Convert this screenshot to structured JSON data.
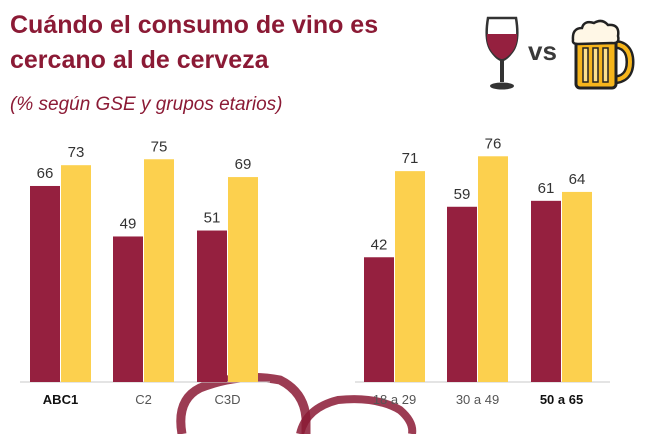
{
  "title": "Cuándo el consumo de vino es cercano al de cerveza",
  "subtitle": "(% según GSE y grupos etarios)",
  "vs_label": "vs",
  "icons": {
    "left": "wine-glass-icon",
    "right": "beer-mug-icon"
  },
  "colors": {
    "wine": "#95203f",
    "beer": "#fcd04e",
    "title": "#8b1a35"
  },
  "chart_data": {
    "type": "bar",
    "title": "Cuándo el consumo de vino es cercano al de cerveza",
    "subtitle": "(% según GSE y grupos etarios)",
    "categories": [
      "ABC1",
      "C2",
      "C3D",
      "18 a 29",
      "30 a 49",
      "50 a 65"
    ],
    "bold_categories": [
      "ABC1",
      "50 a 65"
    ],
    "series": [
      {
        "values": [
          66,
          49,
          51,
          42,
          59,
          61
        ],
        "color": "#95203f"
      },
      {
        "values": [
          73,
          75,
          69,
          71,
          76,
          64
        ],
        "color": "#fcd04e"
      }
    ],
    "ylim": [
      0,
      100
    ],
    "xlabel": "",
    "ylabel": "",
    "grid": false,
    "legend": "icons top-right"
  }
}
